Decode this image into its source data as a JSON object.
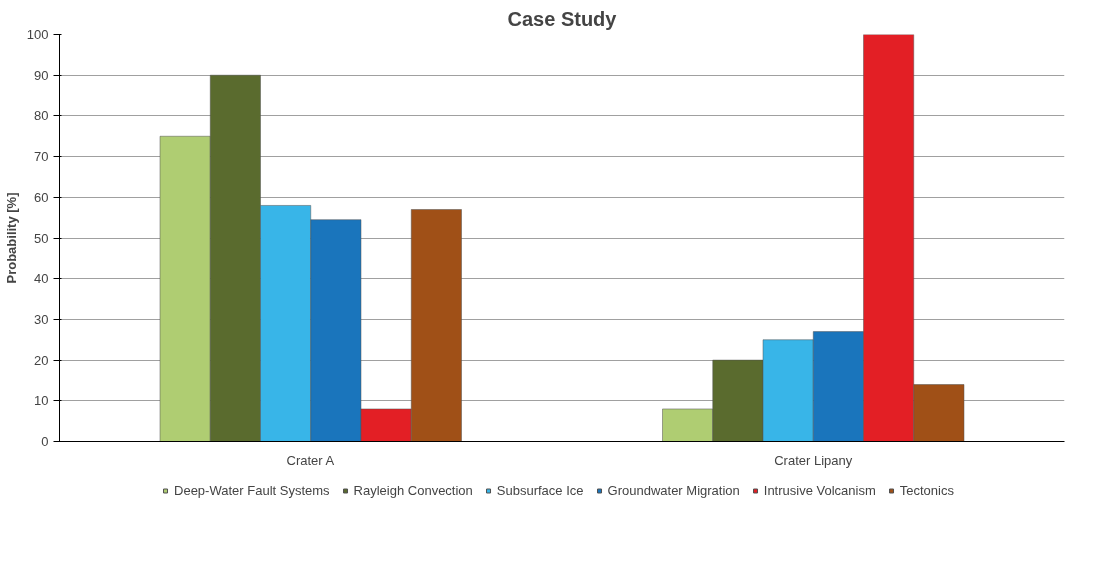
{
  "chart_data": {
    "type": "bar",
    "title": "Case Study",
    "ylabel": "Probability [%]",
    "categories": [
      "Crater A",
      "Crater Lipany"
    ],
    "series": [
      {
        "name": "Deep-Water Fault Systems",
        "color": "#afcd72",
        "values": [
          75,
          8
        ]
      },
      {
        "name": "Rayleigh Convection",
        "color": "#5a6b2e",
        "values": [
          90,
          20
        ]
      },
      {
        "name": "Subsurface Ice",
        "color": "#38b5e8",
        "values": [
          58,
          25
        ]
      },
      {
        "name": "Groundwater Migration",
        "color": "#1a75bc",
        "values": [
          54.5,
          27
        ]
      },
      {
        "name": "Intrusive Volcanism",
        "color": "#e31f25",
        "values": [
          8,
          100
        ]
      },
      {
        "name": "Tectonics",
        "color": "#a05017",
        "values": [
          57,
          14
        ]
      }
    ],
    "ylim": [
      0,
      100
    ],
    "yticks": [
      0,
      10,
      20,
      30,
      40,
      50,
      60,
      70,
      80,
      90,
      100
    ],
    "grid": "y",
    "legend": "bottom"
  }
}
